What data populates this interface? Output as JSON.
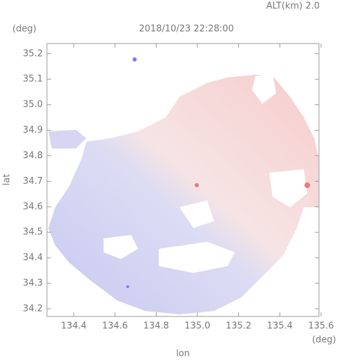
{
  "chart_data": {
    "type": "map",
    "subtitle": "ALT(km) 2.0",
    "title": "2018/10/23 22:28:00",
    "y_unit": "(deg)",
    "x_unit": "(deg)",
    "xlabel": "lon",
    "ylabel": "lat",
    "xlim": [
      134.27,
      135.59
    ],
    "ylim": [
      34.17,
      35.24
    ],
    "xticks": [
      134.4,
      134.6,
      134.8,
      {
        "value": 135,
        "label": "135.0"
      },
      135.2,
      135.4,
      135.6
    ],
    "yticks": [
      34.2,
      34.3,
      34.4,
      34.5,
      34.6,
      34.7,
      34.8,
      34.9,
      {
        "value": 35,
        "label": "35.0"
      },
      35.1,
      35.2
    ],
    "grid": false
  }
}
